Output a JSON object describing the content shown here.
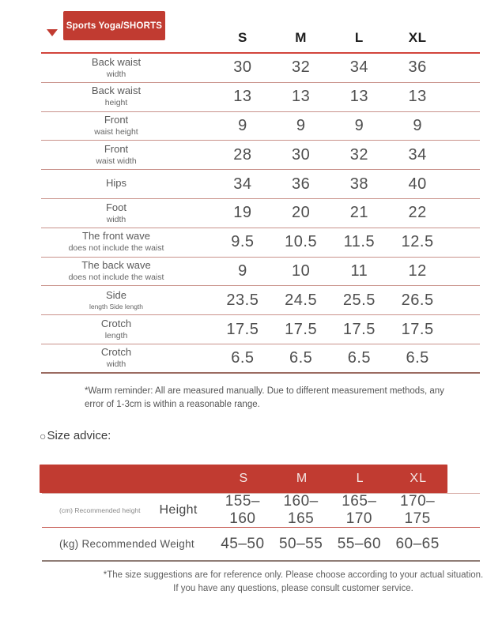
{
  "tag": {
    "label": "Sports Yoga/SHORTS"
  },
  "colors": {
    "accent_red": "#c13b31",
    "row_line": "#c9928b",
    "header_line": "#d2453c",
    "bottom_line": "#9b6b61"
  },
  "size_table": {
    "sizes": [
      "S",
      "M",
      "L",
      "XL"
    ],
    "rows": [
      {
        "label1": "Back waist",
        "label2": "width",
        "values": [
          "30",
          "32",
          "34",
          "36"
        ]
      },
      {
        "label1": "Back waist",
        "label2": "height",
        "values": [
          "13",
          "13",
          "13",
          "13"
        ]
      },
      {
        "label1": "Front",
        "label2": "waist height",
        "values": [
          "9",
          "9",
          "9",
          "9"
        ]
      },
      {
        "label1": "Front",
        "label2": "waist width",
        "values": [
          "28",
          "30",
          "32",
          "34"
        ]
      },
      {
        "label1": "Hips",
        "label2": "",
        "values": [
          "34",
          "36",
          "38",
          "40"
        ]
      },
      {
        "label1": "Foot",
        "label2": "width",
        "values": [
          "19",
          "20",
          "21",
          "22"
        ]
      },
      {
        "label1": "The front wave",
        "label2": "does not include the waist",
        "values": [
          "9.5",
          "10.5",
          "11.5",
          "12.5"
        ]
      },
      {
        "label1": "The back wave",
        "label2": "does not include the waist",
        "values": [
          "9",
          "10",
          "11",
          "12"
        ]
      },
      {
        "label1": "Side",
        "label2": "length Side length",
        "values": [
          "23.5",
          "24.5",
          "25.5",
          "26.5"
        ]
      },
      {
        "label1": "Crotch",
        "label2": "length",
        "values": [
          "17.5",
          "17.5",
          "17.5",
          "17.5"
        ]
      },
      {
        "label1": "Crotch",
        "label2": "width",
        "values": [
          "6.5",
          "6.5",
          "6.5",
          "6.5"
        ]
      }
    ],
    "note": "*Warm reminder: All are measured manually. Due to different measurement methods, any error of 1-3cm is within a reasonable range."
  },
  "size_advice": {
    "heading_icon": "○",
    "heading_text": "Size advice:",
    "sizes": [
      "S",
      "M",
      "L",
      "XL"
    ],
    "rows": [
      {
        "label_small": "(cm) Recommended height",
        "label_big": "Height",
        "values": [
          "155–160",
          "160–165",
          "165–170",
          "170–175"
        ]
      },
      {
        "label_small": "(kg) Recommended Weight",
        "label_big": "",
        "values": [
          "45–50",
          "50–55",
          "55–60",
          "60–65"
        ]
      }
    ],
    "note": "*The size suggestions are for reference only. Please choose according to your actual situation. If you have any questions, please consult customer service."
  }
}
